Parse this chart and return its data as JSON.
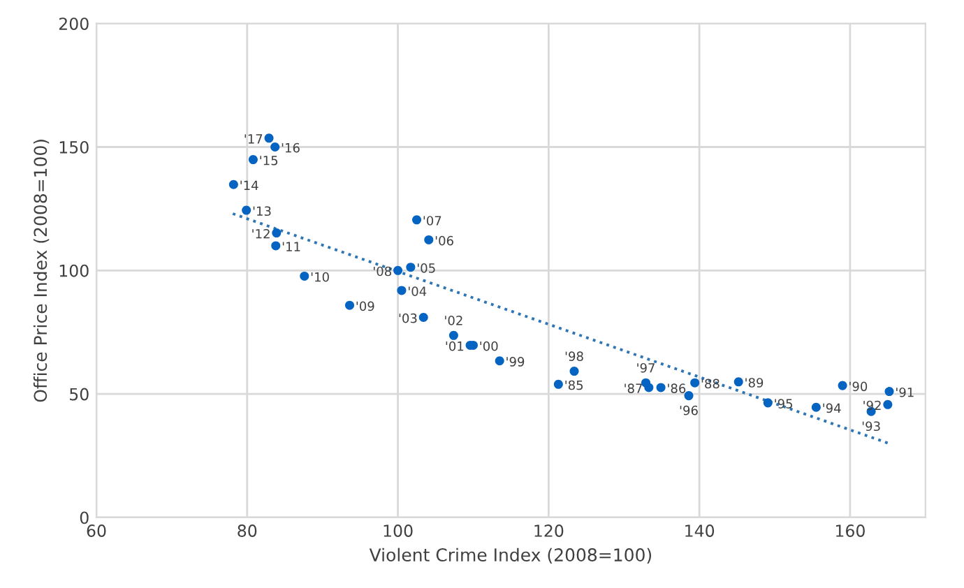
{
  "chart_data": {
    "type": "scatter",
    "xlabel": "Violent Crime Index (2008=100)",
    "ylabel": "Office Price Index (2008=100)",
    "xlim": [
      60,
      170
    ],
    "xticks": [
      60,
      80,
      100,
      120,
      140,
      160
    ],
    "ylim": [
      0,
      200
    ],
    "yticks": [
      0,
      50,
      100,
      150,
      200
    ],
    "grid": true,
    "marker": "circle",
    "series": [
      {
        "color": "#0563c1",
        "x": [
          121.3,
          134.9,
          133.3,
          139.4,
          145.2,
          159.0,
          165.2,
          165.0,
          162.8,
          155.5,
          149.1,
          138.6,
          132.9,
          123.4,
          113.5,
          110.0,
          109.6,
          107.4,
          103.4,
          100.5,
          101.7,
          104.1,
          102.5,
          100,
          93.6,
          87.6,
          83.8,
          83.9,
          79.9,
          78.2,
          80.8,
          83.7,
          82.9
        ],
        "values": [
          53.9,
          52.6,
          52.6,
          54.5,
          54.9,
          53.4,
          51.0,
          45.7,
          42.9,
          44.6,
          46.4,
          49.3,
          54.5,
          59.2,
          63.4,
          69.7,
          69.7,
          73.7,
          81.0,
          91.9,
          101.3,
          112.4,
          120.5,
          100,
          85.9,
          97.7,
          110.0,
          115.2,
          124.4,
          134.8,
          144.9,
          150.0,
          153.6
        ]
      },
      {
        "type": "line",
        "color": "#2e75b6",
        "line_style": "dotted",
        "marker": "none",
        "x": [
          78.1,
          165.4
        ],
        "values": [
          123.0,
          29.7
        ]
      }
    ],
    "annotations": [
      {
        "text": "'85",
        "x": 121.3,
        "y": 53.9
      },
      {
        "text": "'86",
        "x": 134.9,
        "y": 52.6
      },
      {
        "text": "'87",
        "x": 133.3,
        "y": 52.6
      },
      {
        "text": "'88",
        "x": 139.4,
        "y": 54.5
      },
      {
        "text": "'89",
        "x": 145.2,
        "y": 54.9
      },
      {
        "text": "'90",
        "x": 159.0,
        "y": 53.4
      },
      {
        "text": "'91",
        "x": 165.2,
        "y": 51.0
      },
      {
        "text": "'92",
        "x": 165.0,
        "y": 45.7
      },
      {
        "text": "'93",
        "x": 162.8,
        "y": 42.9
      },
      {
        "text": "'94",
        "x": 155.5,
        "y": 44.6
      },
      {
        "text": "'95",
        "x": 149.1,
        "y": 46.4
      },
      {
        "text": "'96",
        "x": 138.6,
        "y": 49.3
      },
      {
        "text": "'97",
        "x": 132.9,
        "y": 54.5
      },
      {
        "text": "'98",
        "x": 123.4,
        "y": 59.2
      },
      {
        "text": "'99",
        "x": 113.5,
        "y": 63.4
      },
      {
        "text": "'00",
        "x": 110.0,
        "y": 69.7
      },
      {
        "text": "'01",
        "x": 109.6,
        "y": 69.7
      },
      {
        "text": "'02",
        "x": 107.4,
        "y": 73.7
      },
      {
        "text": "'03",
        "x": 103.4,
        "y": 81.0
      },
      {
        "text": "'04",
        "x": 100.5,
        "y": 91.9
      },
      {
        "text": "'05",
        "x": 101.7,
        "y": 101.3
      },
      {
        "text": "'06",
        "x": 104.1,
        "y": 112.4
      },
      {
        "text": "'07",
        "x": 102.5,
        "y": 120.5
      },
      {
        "text": "'08",
        "x": 100,
        "y": 100
      },
      {
        "text": "'09",
        "x": 93.6,
        "y": 85.9
      },
      {
        "text": "'10",
        "x": 87.6,
        "y": 97.7
      },
      {
        "text": "'11",
        "x": 83.8,
        "y": 110.0
      },
      {
        "text": "'12",
        "x": 83.9,
        "y": 115.2
      },
      {
        "text": "'13",
        "x": 79.9,
        "y": 124.4
      },
      {
        "text": "'14",
        "x": 78.2,
        "y": 134.8
      },
      {
        "text": "'15",
        "x": 80.8,
        "y": 144.9
      },
      {
        "text": "'16",
        "x": 83.7,
        "y": 150.0
      },
      {
        "text": "'17",
        "x": 82.9,
        "y": 153.6
      }
    ]
  }
}
